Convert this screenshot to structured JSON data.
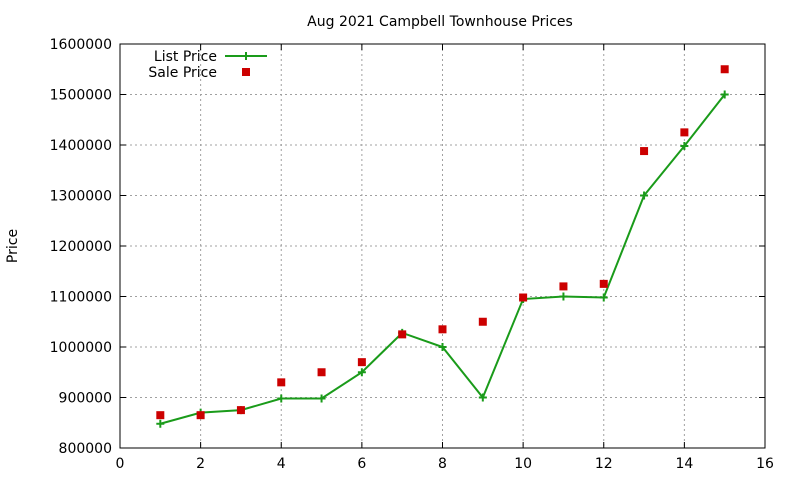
{
  "chart_data": {
    "type": "line",
    "title": "Aug 2021 Campbell Townhouse Prices",
    "xlabel": "",
    "ylabel": "Price",
    "xlim": [
      0,
      16
    ],
    "ylim": [
      800000,
      1600000
    ],
    "x_ticks": [
      "0",
      "2",
      "4",
      "6",
      "8",
      "10",
      "12",
      "14",
      "16"
    ],
    "y_ticks": [
      "800000",
      "900000",
      "1000000",
      "1100000",
      "1200000",
      "1300000",
      "1400000",
      "1500000",
      "1600000"
    ],
    "grid": true,
    "legend_position": "top-left",
    "series": [
      {
        "name": "List Price",
        "style": "line+cross",
        "color": "#1a9b1a",
        "x": [
          1,
          2,
          3,
          4,
          5,
          6,
          7,
          8,
          9,
          10,
          11,
          12,
          13,
          14,
          15
        ],
        "values": [
          848000,
          870000,
          875000,
          898000,
          898000,
          950000,
          1028000,
          1000000,
          900000,
          1095000,
          1100000,
          1098000,
          1300000,
          1398000,
          1500000
        ]
      },
      {
        "name": "Sale Price",
        "style": "square",
        "color": "#cc0000",
        "x": [
          1,
          2,
          3,
          4,
          5,
          6,
          7,
          8,
          9,
          10,
          11,
          12,
          13,
          14,
          15
        ],
        "values": [
          865000,
          865000,
          875000,
          930000,
          950000,
          970000,
          1025000,
          1035000,
          1050000,
          1098000,
          1120000,
          1125000,
          1388000,
          1425000,
          1550000
        ]
      }
    ]
  }
}
